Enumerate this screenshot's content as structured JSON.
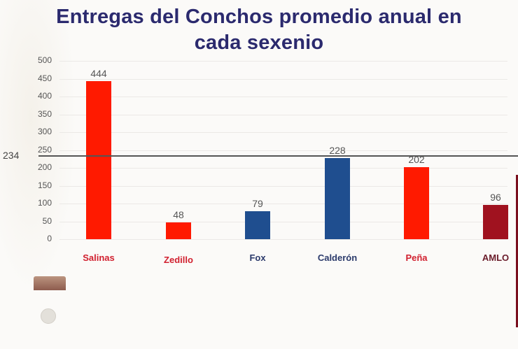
{
  "title": "Entregas del Conchos promedio anual en cada sexenio",
  "title_line1": "Entregas del Conchos promedio anual en",
  "title_line2": "cada sexenio",
  "colors": {
    "title": "#2b2a6e",
    "red": "#ff1a00",
    "blue": "#1f4e8f",
    "darkred": "#a0121f",
    "label_red": "#d1202f",
    "label_blue": "#2b3a6b",
    "label_darkred": "#6b1d2b",
    "reference_line": "#555555"
  },
  "y_ticks": [
    "500",
    "450",
    "400",
    "350",
    "300",
    "250",
    "200",
    "150",
    "100",
    "50",
    "0"
  ],
  "reference": {
    "value": 234,
    "label": "234"
  },
  "chart_data": {
    "type": "bar",
    "title": "Entregas del Conchos promedio anual en cada sexenio",
    "xlabel": "",
    "ylabel": "",
    "categories": [
      "Salinas",
      "Zedillo",
      "Fox",
      "Calderón",
      "Peña",
      "AMLO"
    ],
    "values": [
      444,
      48,
      79,
      228,
      202,
      96
    ],
    "bar_colors": [
      "#ff1a00",
      "#ff1a00",
      "#1f4e8f",
      "#1f4e8f",
      "#ff1a00",
      "#a0121f"
    ],
    "data_labels": [
      "444",
      "48",
      "79",
      "228",
      "202",
      "96"
    ],
    "ylim": [
      0,
      500
    ],
    "yticks": [
      0,
      50,
      100,
      150,
      200,
      250,
      300,
      350,
      400,
      450,
      500
    ],
    "grid": true,
    "legend": "none",
    "annotations": [
      {
        "type": "hline",
        "y": 234,
        "label": "234"
      }
    ]
  },
  "bars": [
    {
      "label": "Salinas",
      "value": "444",
      "cls": "red"
    },
    {
      "label": "Zedillo",
      "value": "48",
      "cls": "red"
    },
    {
      "label": "Fox",
      "value": "79",
      "cls": "blue"
    },
    {
      "label": "Calderón",
      "value": "228",
      "cls": "blue"
    },
    {
      "label": "Peña",
      "value": "202",
      "cls": "red"
    },
    {
      "label": "AMLO",
      "value": "96",
      "cls": "darkred"
    }
  ]
}
